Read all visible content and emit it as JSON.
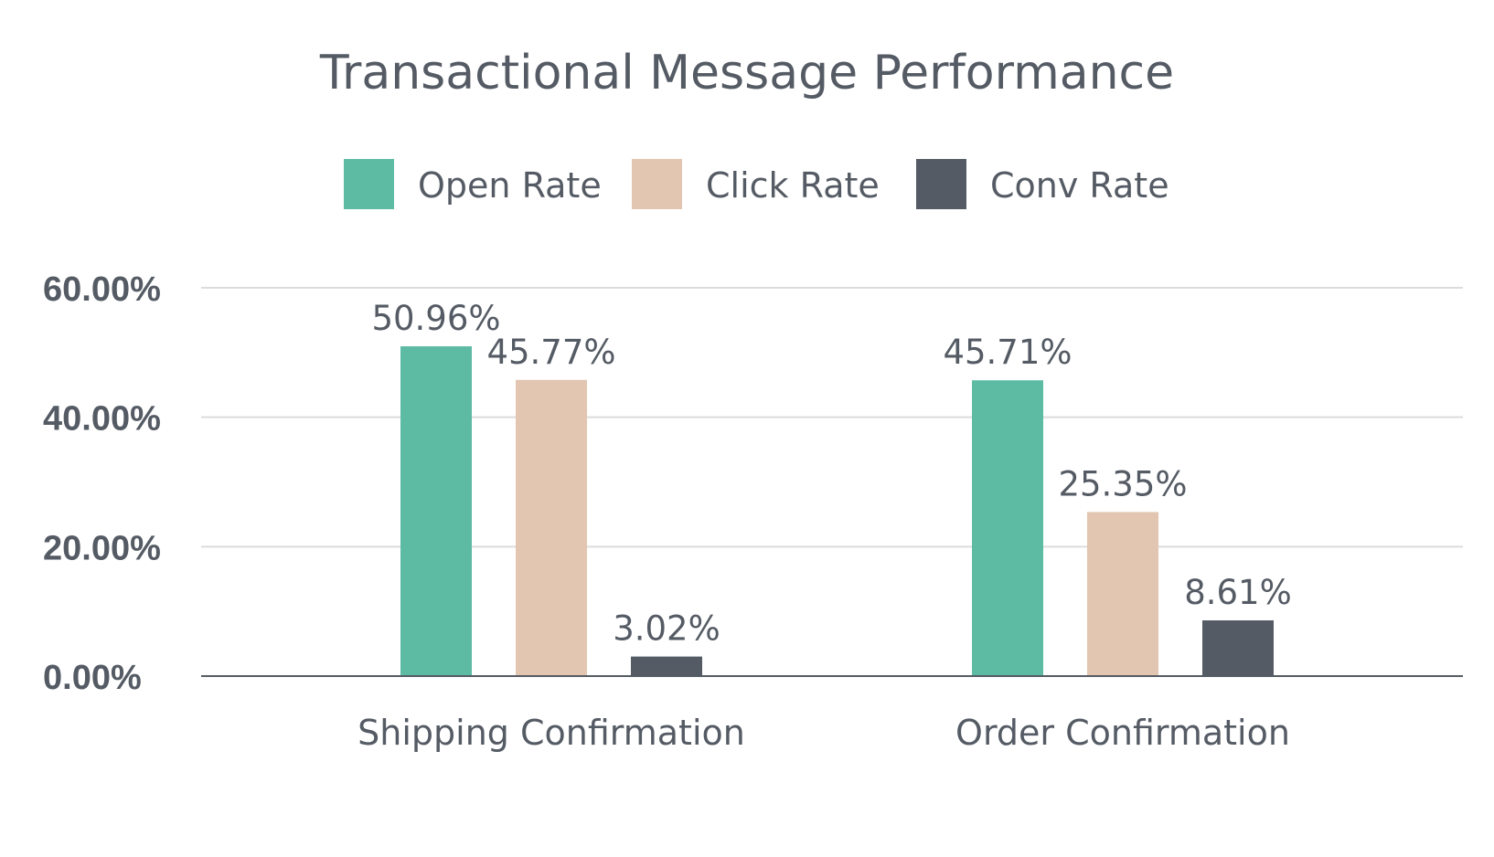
{
  "chart_data": {
    "type": "bar",
    "title": "Transactional Message Performance",
    "categories": [
      "Shipping Confirmation",
      "Order Confirmation"
    ],
    "series": [
      {
        "name": "Open Rate",
        "color": "#5dbba4",
        "values": [
          50.96,
          45.71
        ],
        "labels": [
          "50.96%",
          "45.71%"
        ]
      },
      {
        "name": "Click Rate",
        "color": "#e2c6b1",
        "values": [
          45.77,
          25.35
        ],
        "labels": [
          "45.77%",
          "25.35%"
        ]
      },
      {
        "name": "Conv Rate",
        "color": "#555b64",
        "values": [
          3.02,
          8.61
        ],
        "labels": [
          "3.02%",
          "8.61%"
        ]
      }
    ],
    "ylim": [
      0,
      60
    ],
    "yticks": [
      0,
      20,
      40,
      60
    ],
    "ytick_labels": [
      "0.00%",
      "20.00%",
      "40.00%",
      "60.00%"
    ],
    "xlabel": "",
    "ylabel": "",
    "grid": true,
    "legend_position": "top-center"
  }
}
